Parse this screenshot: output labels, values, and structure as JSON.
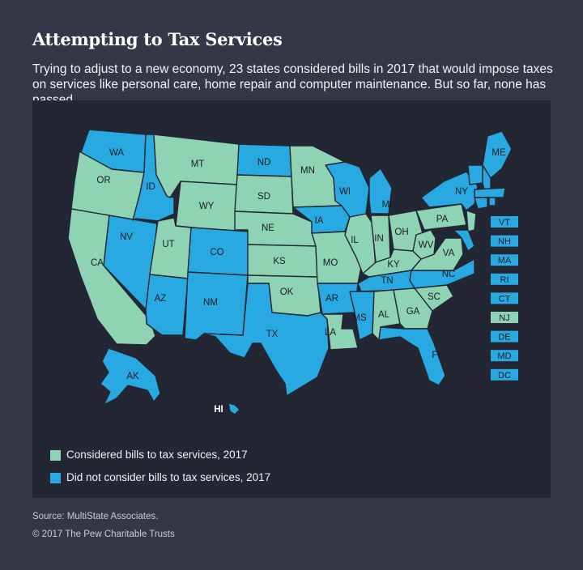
{
  "header": {
    "title": "Attempting to Tax Services",
    "subtitle": "Trying to adjust to a new economy, 23 states considered bills in 2017 that would impose taxes on services like personal care, home repair and computer maintenance. But so far, none has passed."
  },
  "colors": {
    "considered": "#8fd3b5",
    "not_considered": "#28a9e1",
    "background": "#343745",
    "panel": "#232633"
  },
  "map": {
    "states": [
      {
        "code": "WA",
        "status": "not_considered"
      },
      {
        "code": "OR",
        "status": "considered"
      },
      {
        "code": "CA",
        "status": "considered"
      },
      {
        "code": "NV",
        "status": "not_considered"
      },
      {
        "code": "ID",
        "status": "not_considered"
      },
      {
        "code": "MT",
        "status": "considered"
      },
      {
        "code": "WY",
        "status": "considered"
      },
      {
        "code": "UT",
        "status": "considered"
      },
      {
        "code": "AZ",
        "status": "not_considered"
      },
      {
        "code": "CO",
        "status": "not_considered"
      },
      {
        "code": "NM",
        "status": "not_considered"
      },
      {
        "code": "ND",
        "status": "not_considered"
      },
      {
        "code": "SD",
        "status": "considered"
      },
      {
        "code": "NE",
        "status": "considered"
      },
      {
        "code": "KS",
        "status": "considered"
      },
      {
        "code": "OK",
        "status": "considered"
      },
      {
        "code": "TX",
        "status": "not_considered"
      },
      {
        "code": "MN",
        "status": "considered"
      },
      {
        "code": "IA",
        "status": "not_considered"
      },
      {
        "code": "MO",
        "status": "considered"
      },
      {
        "code": "AR",
        "status": "not_considered"
      },
      {
        "code": "LA",
        "status": "considered"
      },
      {
        "code": "WI",
        "status": "not_considered"
      },
      {
        "code": "IL",
        "status": "considered"
      },
      {
        "code": "MI",
        "status": "not_considered"
      },
      {
        "code": "IN",
        "status": "considered"
      },
      {
        "code": "OH",
        "status": "considered"
      },
      {
        "code": "KY",
        "status": "considered"
      },
      {
        "code": "TN",
        "status": "not_considered"
      },
      {
        "code": "MS",
        "status": "not_considered"
      },
      {
        "code": "AL",
        "status": "considered"
      },
      {
        "code": "GA",
        "status": "considered"
      },
      {
        "code": "FL",
        "status": "not_considered"
      },
      {
        "code": "SC",
        "status": "considered"
      },
      {
        "code": "NC",
        "status": "not_considered"
      },
      {
        "code": "VA",
        "status": "considered"
      },
      {
        "code": "WV",
        "status": "considered"
      },
      {
        "code": "PA",
        "status": "considered"
      },
      {
        "code": "NY",
        "status": "not_considered"
      },
      {
        "code": "ME",
        "status": "not_considered"
      },
      {
        "code": "AK",
        "status": "not_considered"
      },
      {
        "code": "HI",
        "status": "not_considered"
      }
    ],
    "small_states": [
      {
        "code": "VT",
        "status": "not_considered"
      },
      {
        "code": "NH",
        "status": "not_considered"
      },
      {
        "code": "MA",
        "status": "not_considered"
      },
      {
        "code": "RI",
        "status": "not_considered"
      },
      {
        "code": "CT",
        "status": "not_considered"
      },
      {
        "code": "NJ",
        "status": "considered"
      },
      {
        "code": "DE",
        "status": "not_considered"
      },
      {
        "code": "MD",
        "status": "not_considered"
      },
      {
        "code": "DC",
        "status": "not_considered"
      }
    ]
  },
  "legend": {
    "items": [
      {
        "key": "considered",
        "label": "Considered bills to tax services, 2017"
      },
      {
        "key": "not_considered",
        "label": "Did not consider bills to tax services, 2017"
      }
    ]
  },
  "footer": {
    "source": "Source: MultiState Associates.",
    "copyright": "© 2017 The Pew Charitable Trusts"
  }
}
